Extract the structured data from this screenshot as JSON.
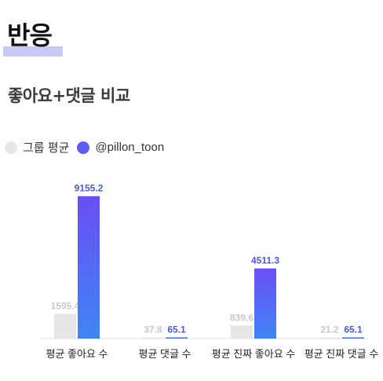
{
  "section": {
    "title": "반응"
  },
  "chart_data": {
    "type": "bar",
    "title": "좋아요+댓글 비교",
    "categories": [
      "평균 좋아요 수",
      "평균 댓글 수",
      "평균 진짜 좋아요 수",
      "평균 진짜 댓글 수"
    ],
    "series": [
      {
        "name": "그룹 평균",
        "values": [
          1595.4,
          37.8,
          839.6,
          21.2
        ],
        "labels": [
          "1595.4",
          "37.8",
          "839.6",
          "21.2"
        ],
        "color": "#e6e6e6",
        "label_color": "#c9c9c9"
      },
      {
        "name": "@pillon_toon",
        "values": [
          9155.2,
          65.1,
          4511.3,
          65.1
        ],
        "labels": [
          "9155.2",
          "65.1",
          "4511.3",
          "65.1"
        ],
        "color": "#5d5cf5",
        "color_top": "#6a4ef5",
        "color_bottom": "#3f86f5",
        "label_color": "#4a5bd4"
      }
    ],
    "ylim": [
      0,
      10000
    ],
    "grid": false,
    "legend_position": "top-left"
  }
}
